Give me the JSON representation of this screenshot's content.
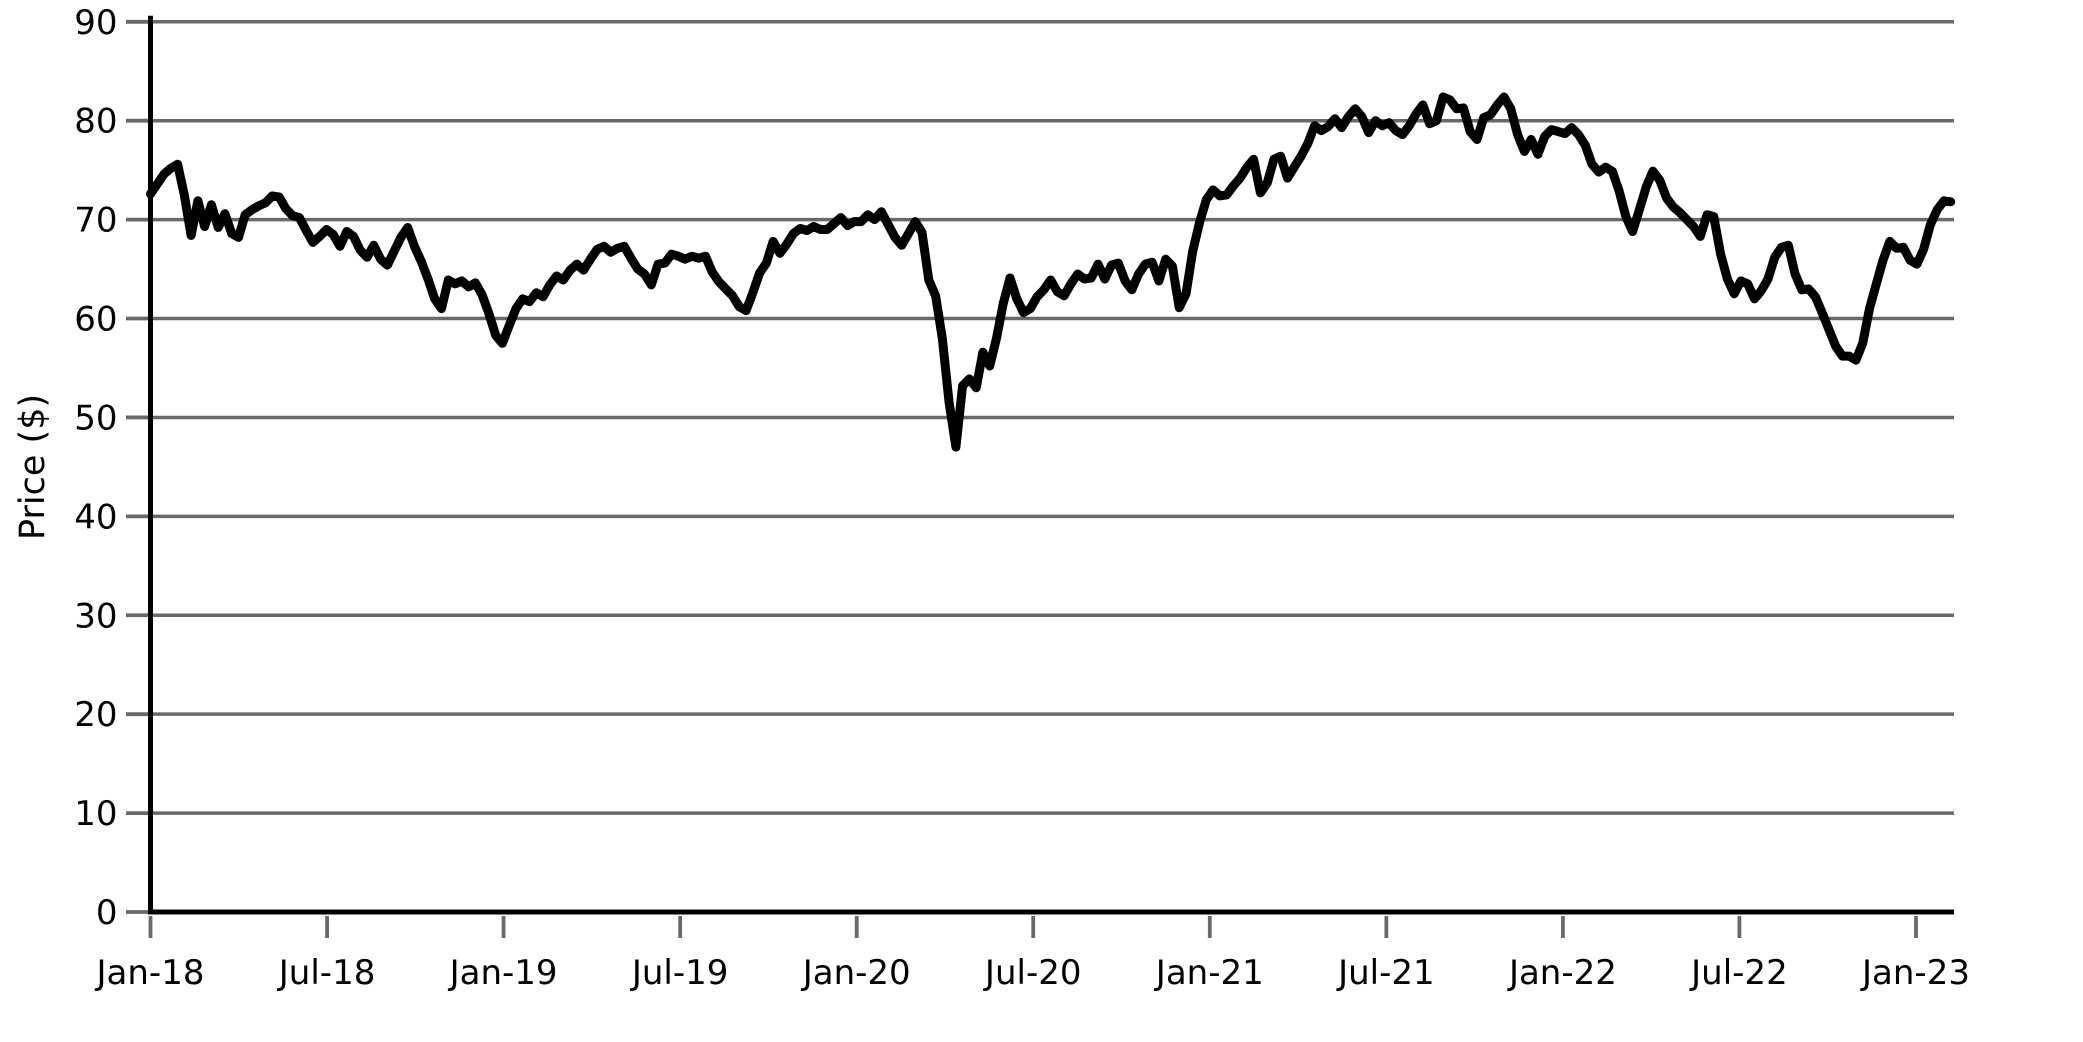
{
  "figure": {
    "background": "#ffffff",
    "line_color": "#000000",
    "grid_color": "#696969",
    "tick_color": "#696969",
    "spine_color": "#000000",
    "text_color": "#000000"
  },
  "chart_data": {
    "type": "line",
    "title": "",
    "xlabel": "",
    "ylabel": "Price ($)",
    "ylim": [
      0,
      90
    ],
    "yticks": [
      0,
      10,
      20,
      30,
      40,
      50,
      60,
      70,
      80,
      90
    ],
    "grid": "horizontal gridlines at every y tick",
    "legend_position": "none",
    "series_name": "price",
    "x_unit": "weeks since Jan-2018 (weekly data points)",
    "x_max_weeks": 266.5,
    "xticks": [
      {
        "label": "Jan-18",
        "week": 0
      },
      {
        "label": "Jul-18",
        "week": 26.09
      },
      {
        "label": "Jan-19",
        "week": 52.17
      },
      {
        "label": "Jul-19",
        "week": 78.26
      },
      {
        "label": "Jan-20",
        "week": 104.35
      },
      {
        "label": "Jul-20",
        "week": 130.43
      },
      {
        "label": "Jan-21",
        "week": 156.52
      },
      {
        "label": "Jul-21",
        "week": 182.61
      },
      {
        "label": "Jan-22",
        "week": 208.7
      },
      {
        "label": "Jul-22",
        "week": 234.78
      },
      {
        "label": "Jan-23",
        "week": 260.87
      }
    ],
    "values": [
      72.6,
      73.6,
      74.6,
      75.2,
      75.6,
      72.5,
      68.4,
      71.9,
      69.3,
      71.5,
      69.2,
      70.6,
      68.6,
      68.2,
      70.5,
      71.0,
      71.4,
      71.7,
      72.4,
      72.3,
      71.1,
      70.4,
      70.2,
      68.9,
      67.7,
      68.3,
      69.0,
      68.5,
      67.3,
      68.8,
      68.3,
      66.9,
      66.2,
      67.4,
      66.0,
      65.4,
      66.8,
      68.2,
      69.2,
      67.3,
      65.8,
      64.0,
      62.0,
      61.0,
      63.9,
      63.5,
      63.8,
      63.2,
      63.6,
      62.4,
      60.5,
      58.3,
      57.5,
      59.3,
      61.0,
      62.0,
      61.7,
      62.6,
      62.2,
      63.4,
      64.3,
      63.9,
      64.9,
      65.5,
      64.9,
      66.0,
      67.0,
      67.3,
      66.7,
      67.1,
      67.3,
      66.1,
      65.0,
      64.5,
      63.4,
      65.5,
      65.6,
      66.5,
      66.3,
      66.0,
      66.3,
      66.1,
      66.3,
      64.7,
      63.7,
      63.0,
      62.3,
      61.2,
      60.8,
      62.6,
      64.6,
      65.6,
      67.8,
      66.6,
      67.5,
      68.6,
      69.1,
      68.9,
      69.3,
      69.0,
      69.0,
      69.6,
      70.2,
      69.4,
      69.8,
      69.8,
      70.5,
      70.0,
      70.8,
      69.5,
      68.2,
      67.4,
      68.6,
      69.8,
      68.7,
      63.9,
      62.3,
      58.0,
      51.5,
      47.0,
      53.2,
      53.9,
      53.0,
      56.6,
      55.2,
      58.0,
      61.5,
      64.1,
      62.0,
      60.6,
      61.0,
      62.2,
      62.9,
      63.9,
      62.7,
      62.3,
      63.5,
      64.5,
      64.0,
      64.1,
      65.5,
      64.0,
      65.4,
      65.6,
      63.8,
      62.9,
      64.5,
      65.5,
      65.7,
      63.8,
      66.0,
      65.3,
      61.1,
      62.5,
      66.8,
      69.7,
      72.0,
      73.0,
      72.4,
      72.5,
      73.4,
      74.2,
      75.3,
      76.1,
      72.7,
      73.7,
      76.1,
      76.4,
      74.2,
      75.3,
      76.4,
      77.7,
      79.5,
      79.0,
      79.4,
      80.2,
      79.3,
      80.4,
      81.2,
      80.4,
      78.8,
      80.0,
      79.5,
      79.8,
      79.0,
      78.6,
      79.5,
      80.7,
      81.6,
      79.7,
      80.0,
      82.4,
      82.1,
      81.2,
      81.3,
      78.9,
      78.1,
      80.3,
      80.6,
      81.6,
      82.4,
      81.2,
      78.6,
      76.9,
      78.1,
      76.6,
      78.4,
      79.1,
      78.9,
      78.7,
      79.3,
      78.6,
      77.5,
      75.6,
      74.8,
      75.3,
      74.9,
      72.9,
      70.3,
      68.8,
      71.0,
      73.3,
      74.9,
      74.0,
      72.2,
      71.3,
      70.7,
      70.0,
      69.3,
      68.3,
      70.5,
      70.3,
      66.5,
      64.0,
      62.5,
      63.8,
      63.5,
      62.0,
      62.8,
      64.0,
      66.2,
      67.2,
      67.4,
      64.5,
      62.9,
      63.0,
      62.2,
      60.6,
      58.9,
      57.2,
      56.2,
      56.2,
      55.8,
      57.5,
      61.0,
      63.5,
      65.9,
      67.8,
      67.1,
      67.2,
      65.9,
      65.5,
      67.0,
      69.5,
      71.0,
      71.9,
      71.8
    ]
  }
}
